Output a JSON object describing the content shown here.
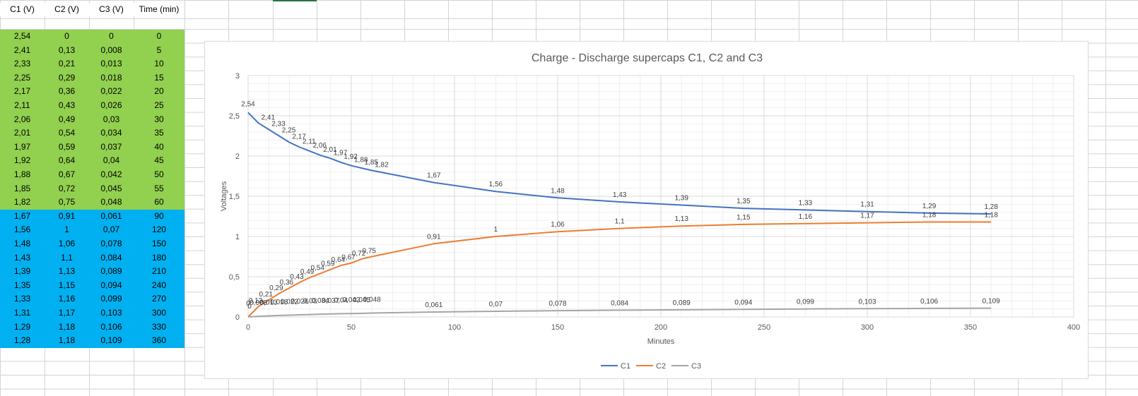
{
  "sheet": {
    "headers": [
      "C1 (V)",
      "C2 (V)",
      "C3 (V)",
      "Time (min)"
    ],
    "rows": [
      [
        "2,54",
        "0",
        "0",
        "0"
      ],
      [
        "2,41",
        "0,13",
        "0,008",
        "5"
      ],
      [
        "2,33",
        "0,21",
        "0,013",
        "10"
      ],
      [
        "2,25",
        "0,29",
        "0,018",
        "15"
      ],
      [
        "2,17",
        "0,36",
        "0,022",
        "20"
      ],
      [
        "2,11",
        "0,43",
        "0,026",
        "25"
      ],
      [
        "2,06",
        "0,49",
        "0,03",
        "30"
      ],
      [
        "2,01",
        "0,54",
        "0,034",
        "35"
      ],
      [
        "1,97",
        "0,59",
        "0,037",
        "40"
      ],
      [
        "1,92",
        "0,64",
        "0,04",
        "45"
      ],
      [
        "1,88",
        "0,67",
        "0,042",
        "50"
      ],
      [
        "1,85",
        "0,72",
        "0,045",
        "55"
      ],
      [
        "1,82",
        "0,75",
        "0,048",
        "60"
      ],
      [
        "1,67",
        "0,91",
        "0,061",
        "90"
      ],
      [
        "1,56",
        "1",
        "0,07",
        "120"
      ],
      [
        "1,48",
        "1,06",
        "0,078",
        "150"
      ],
      [
        "1,43",
        "1,1",
        "0,084",
        "180"
      ],
      [
        "1,39",
        "1,13",
        "0,089",
        "210"
      ],
      [
        "1,35",
        "1,15",
        "0,094",
        "240"
      ],
      [
        "1,33",
        "1,16",
        "0,099",
        "270"
      ],
      [
        "1,31",
        "1,17",
        "0,103",
        "300"
      ],
      [
        "1,29",
        "1,18",
        "0,106",
        "330"
      ],
      [
        "1,28",
        "1,18",
        "0,109",
        "360"
      ]
    ],
    "green_rows": 13,
    "colors": {
      "green": "#92d050",
      "blue": "#00b0f0"
    }
  },
  "chart_data": {
    "type": "line",
    "title": "Charge - Discharge supercaps C1, C2 and C3",
    "xlabel": "Minutes",
    "ylabel": "Voltages",
    "xlim": [
      0,
      400
    ],
    "ylim": [
      0,
      3
    ],
    "xticks": [
      0,
      50,
      100,
      150,
      200,
      250,
      300,
      350,
      400
    ],
    "yticks": [
      0,
      0.5,
      1,
      1.5,
      2,
      2.5,
      3
    ],
    "xtick_labels": [
      "0",
      "50",
      "100",
      "150",
      "200",
      "250",
      "300",
      "350",
      "400"
    ],
    "ytick_labels": [
      "0",
      "0,5",
      "1",
      "1,5",
      "2",
      "2,5",
      "3"
    ],
    "grid": true,
    "legend": "bottom",
    "x": [
      0,
      5,
      10,
      15,
      20,
      25,
      30,
      35,
      40,
      45,
      50,
      55,
      60,
      90,
      120,
      150,
      180,
      210,
      240,
      270,
      300,
      330,
      360
    ],
    "series": [
      {
        "name": "C1",
        "color": "#4472c4",
        "values": [
          2.54,
          2.41,
          2.33,
          2.25,
          2.17,
          2.11,
          2.06,
          2.01,
          1.97,
          1.92,
          1.88,
          1.85,
          1.82,
          1.67,
          1.56,
          1.48,
          1.43,
          1.39,
          1.35,
          1.33,
          1.31,
          1.29,
          1.28
        ],
        "labels": [
          "2,54",
          "2,41",
          "2,33",
          "2,25",
          "2,17",
          "2,11",
          "2,06",
          "2,01",
          "1,97",
          "1,92",
          "1,88",
          "1,85",
          "1,82",
          "1,67",
          "1,56",
          "1,48",
          "1,43",
          "1,39",
          "1,35",
          "1,33",
          "1,31",
          "1,29",
          "1,28"
        ]
      },
      {
        "name": "C2",
        "color": "#ed7d31",
        "values": [
          0,
          0.13,
          0.21,
          0.29,
          0.36,
          0.43,
          0.49,
          0.54,
          0.59,
          0.64,
          0.67,
          0.72,
          0.75,
          0.91,
          1,
          1.06,
          1.1,
          1.13,
          1.15,
          1.16,
          1.17,
          1.18,
          1.18
        ],
        "labels": [
          "0",
          "0,13",
          "0,21",
          "0,29",
          "0,36",
          "0,43",
          "0,49",
          "0,54",
          "0,59",
          "0,64",
          "0,67",
          "0,72",
          "0,75",
          "0,91",
          "1",
          "1,06",
          "1,1",
          "1,13",
          "1,15",
          "1,16",
          "1,17",
          "1,18",
          "1,18"
        ]
      },
      {
        "name": "C3",
        "color": "#a5a5a5",
        "values": [
          0,
          0.008,
          0.013,
          0.018,
          0.022,
          0.026,
          0.03,
          0.034,
          0.037,
          0.04,
          0.042,
          0.045,
          0.048,
          0.061,
          0.07,
          0.078,
          0.084,
          0.089,
          0.094,
          0.099,
          0.103,
          0.106,
          0.109
        ],
        "labels": [
          "0",
          "0,008",
          "0,013",
          "0,018",
          "0,022",
          "0,026",
          "0,03",
          "0,034",
          "0,037",
          "0,04",
          "0,042",
          "0,045",
          "0,048",
          "0,061",
          "0,07",
          "0,078",
          "0,084",
          "0,089",
          "0,094",
          "0,099",
          "0,103",
          "0,106",
          "0,109"
        ]
      }
    ]
  }
}
